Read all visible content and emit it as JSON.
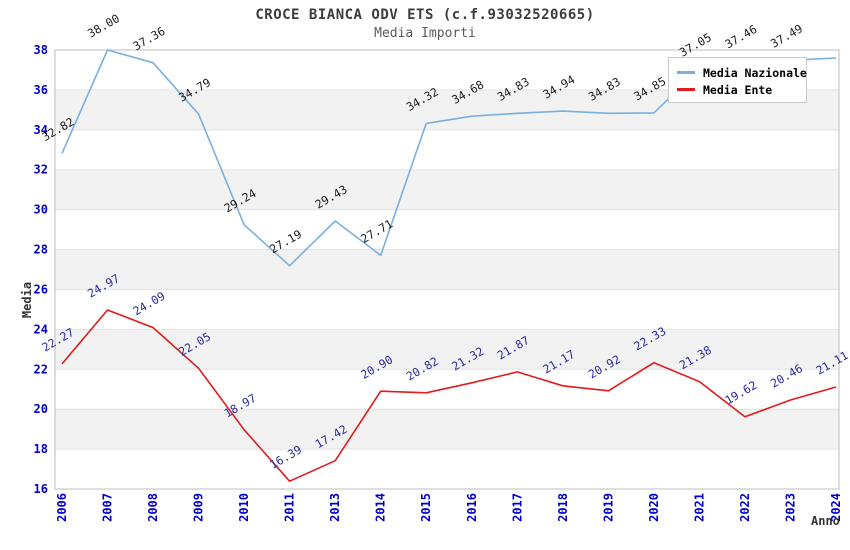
{
  "title": "CROCE BIANCA ODV ETS (c.f.93032520665)",
  "subtitle": "Media Importi",
  "chart_data": {
    "type": "line",
    "title": "CROCE BIANCA ODV ETS (c.f.93032520665)",
    "subtitle": "Media Importi",
    "x_label": "Anno",
    "y_label": "Media",
    "ylim": [
      16,
      38
    ],
    "y_ticks": [
      16,
      18,
      20,
      22,
      24,
      26,
      28,
      30,
      32,
      34,
      36,
      38
    ],
    "grid": "horizontal-bands",
    "legend_position": "top-right",
    "categories": [
      "2006",
      "2007",
      "2008",
      "2009",
      "2010",
      "2011",
      "2013",
      "2014",
      "2015",
      "2016",
      "2017",
      "2018",
      "2019",
      "2020",
      "2021",
      "2022",
      "2023",
      "2024"
    ],
    "series": [
      {
        "name": "Media Nazionale",
        "color": "#79b0e2",
        "label_color": "#1c1c1c",
        "values": [
          32.82,
          38.0,
          37.36,
          34.79,
          29.24,
          27.19,
          29.43,
          27.71,
          34.32,
          34.68,
          34.83,
          34.94,
          34.83,
          34.85,
          37.05,
          37.46,
          37.49,
          37.6
        ],
        "value_labels": [
          "32.82",
          "38.00",
          "37.36",
          "34.79",
          "29.24",
          "27.19",
          "29.43",
          "27.71",
          "34.32",
          "34.68",
          "34.83",
          "34.94",
          "34.83",
          "34.85",
          "37.05",
          "37.46",
          "37.49",
          ""
        ]
      },
      {
        "name": "Media Ente",
        "color": "#e21b1b",
        "label_color": "#2a2aa0",
        "values": [
          22.27,
          24.97,
          24.09,
          22.05,
          18.97,
          16.39,
          17.42,
          20.9,
          20.82,
          21.32,
          21.87,
          21.17,
          20.92,
          22.33,
          21.38,
          19.62,
          20.46,
          21.11
        ],
        "value_labels": [
          "22.27",
          "24.97",
          "24.09",
          "22.05",
          "18.97",
          "16.39",
          "17.42",
          "20.90",
          "20.82",
          "21.32",
          "21.87",
          "21.17",
          "20.92",
          "22.33",
          "21.38",
          "19.62",
          "20.46",
          "21.11"
        ]
      }
    ]
  },
  "colors": {
    "tick_label": "#0000cd",
    "band": "#f2f2f2",
    "grid_line": "#e3e3e3",
    "plot_border": "#bdbdbd",
    "title": "#3c3c3c",
    "subtitle": "#5a5a5a",
    "axis_title": "#333333"
  }
}
